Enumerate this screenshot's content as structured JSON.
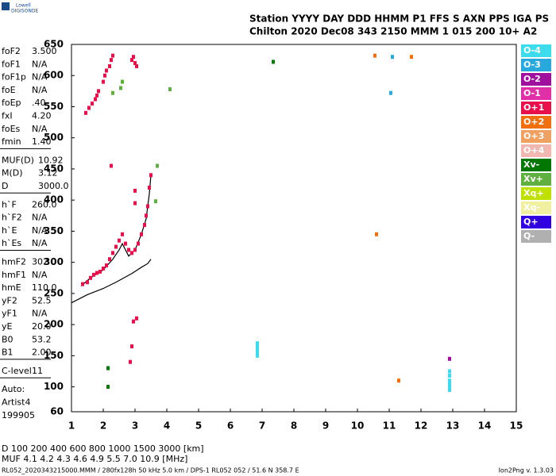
{
  "header": {
    "logo_top": "Lowell",
    "logo_bottom": "DIGISONDE",
    "line1": "Station YYYY DAY   DDD HHMM P1  FFS S AXN PPS IGA PS",
    "line2": "Chilton 2020 Dec08 343 2150 MMM    1 015 200 10+ A2"
  },
  "parameters": [
    [
      [
        "foF2",
        "3.500"
      ],
      [
        "foF1",
        "N/A"
      ],
      [
        "foF1p",
        "N/A"
      ],
      [
        "foE",
        "N/A"
      ],
      [
        "foEp",
        ".40"
      ],
      [
        "fxI",
        "4.20"
      ],
      [
        "foEs",
        "N/A"
      ],
      [
        "fmin",
        "1.40"
      ]
    ],
    [
      [
        "MUF(D)",
        "10.92"
      ],
      [
        "M(D)",
        "3.12"
      ],
      [
        "D",
        "3000.0"
      ]
    ],
    [
      [
        "h`F",
        "260.0"
      ],
      [
        "h`F2",
        "N/A"
      ],
      [
        "h`E",
        "N/A"
      ],
      [
        "h`Es",
        "N/A"
      ]
    ],
    [
      [
        "hmF2",
        "302"
      ],
      [
        "hmF1",
        "N/A"
      ],
      [
        "hmE",
        "110.0"
      ],
      [
        "yF2",
        "52.5"
      ],
      [
        "yF1",
        "N/A"
      ],
      [
        "yE",
        "20.0"
      ],
      [
        "B0",
        "53.2"
      ],
      [
        "B1",
        "2.00"
      ]
    ],
    [
      [
        "C-level",
        "11"
      ]
    ],
    [
      [
        "Auto:",
        ""
      ],
      [
        "Artist4",
        ""
      ],
      [
        "199905",
        ""
      ]
    ]
  ],
  "footer": {
    "d_row": "D   100 200 400 600 800 1000 1500 3000 [km]",
    "muf_row": "MUF  4.1 4.2 4.3 4.6 4.9 5.5 7.0 10.9 [MHz]",
    "file": "RL052_2020343215000.MMM / 280fx128h 50 kHz 5.0 km / DPS-1 RL052 052 / 51.6 N 358.7 E",
    "version": "Ion2Png v. 1.3.03"
  },
  "chart_data": {
    "type": "scatter",
    "xlim": [
      1,
      15
    ],
    "xticks": [
      1,
      2,
      3,
      4,
      5,
      6,
      7,
      8,
      9,
      10,
      11,
      12,
      13,
      14,
      15
    ],
    "ylim": [
      60,
      650
    ],
    "yticks": [
      60,
      100,
      150,
      200,
      250,
      300,
      350,
      400,
      450,
      500,
      550,
      600,
      650
    ],
    "series": [
      {
        "name": "O-4",
        "color": "#3ddcec",
        "x": [
          6.85,
          6.85,
          6.85,
          6.85,
          6.85,
          12.9,
          12.9,
          12.9,
          12.9,
          12.9,
          12.9
        ],
        "values": [
          150,
          155,
          160,
          165,
          170,
          95,
          100,
          105,
          110,
          118,
          125
        ]
      },
      {
        "name": "O-3",
        "color": "#28a8dc",
        "x": [
          11.1,
          11.05
        ],
        "values": [
          630,
          572
        ]
      },
      {
        "name": "O-2",
        "color": "#a0109e",
        "x": [
          12.9
        ],
        "values": [
          145
        ]
      },
      {
        "name": "O-1",
        "color": "#e030a8",
        "x": [],
        "values": []
      },
      {
        "name": "O+1",
        "color": "#e8104a",
        "x": [
          1.35,
          1.5,
          1.6,
          1.7,
          1.8,
          1.9,
          2.0,
          2.1,
          2.2,
          2.3,
          2.4,
          2.5,
          2.6,
          2.7,
          2.8,
          2.9,
          3.0,
          3.1,
          3.2,
          3.3,
          3.35,
          3.4,
          3.45,
          3.5,
          3.0,
          3.0,
          1.45,
          1.55,
          1.65,
          1.75,
          1.8,
          1.85,
          2.0,
          2.05,
          2.1,
          2.2,
          2.25,
          2.3,
          2.9,
          2.95,
          3.0,
          3.05,
          2.95,
          3.05,
          2.9,
          2.85,
          2.25
        ],
        "values": [
          265,
          268,
          275,
          280,
          283,
          285,
          290,
          295,
          305,
          315,
          325,
          335,
          345,
          330,
          320,
          315,
          320,
          330,
          345,
          360,
          375,
          390,
          420,
          440,
          395,
          415,
          540,
          548,
          555,
          562,
          568,
          575,
          590,
          600,
          608,
          615,
          625,
          632,
          625,
          630,
          620,
          615,
          205,
          210,
          165,
          140,
          455
        ]
      },
      {
        "name": "O+2",
        "color": "#f07010",
        "x": [
          10.55,
          10.6,
          11.3,
          11.7
        ],
        "values": [
          632,
          345,
          110,
          630
        ]
      },
      {
        "name": "O+3",
        "color": "#f0a060",
        "x": [],
        "values": []
      },
      {
        "name": "O+4",
        "color": "#f0b8b0",
        "x": [],
        "values": []
      },
      {
        "name": "Xv-",
        "color": "#007800",
        "x": [
          7.35,
          2.15,
          2.15
        ],
        "values": [
          622,
          100,
          130
        ]
      },
      {
        "name": "Xv+",
        "color": "#60b040",
        "x": [
          2.6,
          2.55,
          2.3,
          3.65,
          4.1,
          3.7
        ],
        "values": [
          590,
          580,
          572,
          398,
          578,
          455
        ]
      },
      {
        "name": "Xq+",
        "color": "#c0e000",
        "x": [],
        "values": []
      },
      {
        "name": "Xq-",
        "color": "#f0f0a0",
        "x": [],
        "values": []
      },
      {
        "name": "Q+",
        "color": "#3000e0",
        "x": [],
        "values": []
      },
      {
        "name": "Q-",
        "color": "#b0b0b0",
        "x": [],
        "values": []
      }
    ],
    "profiles": [
      {
        "color": "#000000",
        "x": [
          1.0,
          1.5,
          2.0,
          2.4,
          2.9,
          3.2,
          3.4,
          3.5
        ],
        "values": [
          235,
          248,
          258,
          268,
          282,
          292,
          298,
          305
        ]
      },
      {
        "color": "#000000",
        "x": [
          1.3,
          1.6,
          2.0,
          2.3,
          2.5,
          2.6,
          2.7,
          2.8,
          3.0,
          3.2,
          3.35,
          3.45,
          3.5
        ],
        "values": [
          262,
          275,
          288,
          305,
          320,
          330,
          320,
          310,
          320,
          345,
          370,
          410,
          440
        ]
      }
    ]
  }
}
